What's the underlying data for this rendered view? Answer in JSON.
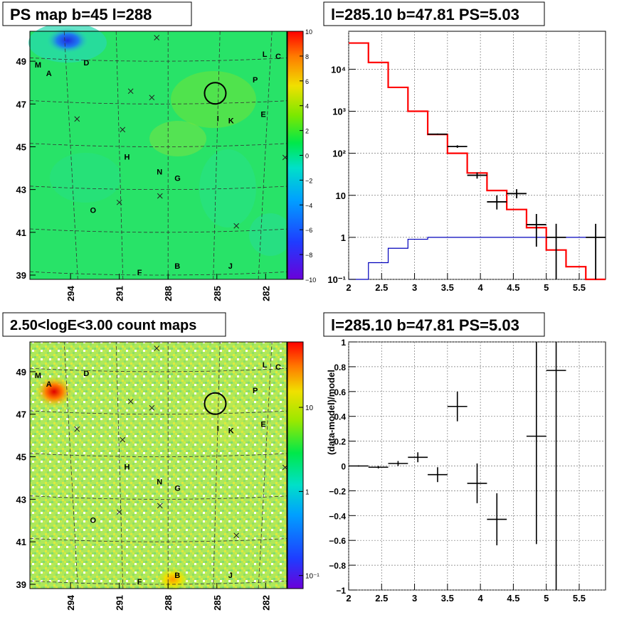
{
  "chart_data": [
    {
      "type": "heatmap",
      "title": "PS map b=45 l=288",
      "x_tick_labels": [
        "294",
        "291",
        "288",
        "285",
        "282"
      ],
      "x_ticks": [
        294,
        291,
        288,
        285,
        282
      ],
      "y_tick_labels": [
        "49",
        "47",
        "45",
        "43",
        "41",
        "39"
      ],
      "y_ticks": [
        49,
        47,
        45,
        43,
        41,
        39
      ],
      "xlim": [
        296.5,
        280.7
      ],
      "ylim": [
        38.8,
        50.4
      ],
      "colorbar": {
        "scale": "linear",
        "tick_labels": [
          "10",
          "8",
          "6",
          "4",
          "2",
          "0",
          "−2",
          "−4",
          "−6",
          "−8",
          "−10"
        ],
        "range": [
          -10,
          10
        ]
      },
      "source_labels": [
        {
          "name": "M",
          "l": 296.2,
          "b": 48.7
        },
        {
          "name": "A",
          "l": 295.5,
          "b": 48.3
        },
        {
          "name": "D",
          "l": 293.2,
          "b": 48.8
        },
        {
          "name": "L",
          "l": 282.2,
          "b": 49.2
        },
        {
          "name": "C",
          "l": 281.4,
          "b": 49.1
        },
        {
          "name": "P",
          "l": 282.8,
          "b": 48.0
        },
        {
          "name": "I",
          "l": 285.0,
          "b": 46.2
        },
        {
          "name": "K",
          "l": 284.3,
          "b": 46.1
        },
        {
          "name": "E",
          "l": 282.3,
          "b": 46.4
        },
        {
          "name": "H",
          "l": 290.7,
          "b": 44.4
        },
        {
          "name": "N",
          "l": 288.7,
          "b": 43.7
        },
        {
          "name": "G",
          "l": 287.6,
          "b": 43.4
        },
        {
          "name": "O",
          "l": 292.8,
          "b": 41.9
        },
        {
          "name": "F",
          "l": 289.9,
          "b": 39.0
        },
        {
          "name": "B",
          "l": 287.6,
          "b": 39.3
        },
        {
          "name": "J",
          "l": 284.3,
          "b": 39.3
        }
      ],
      "cross_markers": [
        {
          "l": 288.7,
          "b": 50.1
        },
        {
          "l": 290.3,
          "b": 47.6
        },
        {
          "l": 289.0,
          "b": 47.3
        },
        {
          "l": 293.6,
          "b": 46.3
        },
        {
          "l": 290.8,
          "b": 45.8
        },
        {
          "l": 280.8,
          "b": 44.5
        },
        {
          "l": 288.5,
          "b": 42.7
        },
        {
          "l": 291.0,
          "b": 42.4
        },
        {
          "l": 283.8,
          "b": 41.3
        }
      ],
      "circle": {
        "l": 285.1,
        "b": 47.5,
        "r": 0.5
      }
    },
    {
      "type": "line",
      "title": "l=285.10 b=47.81 PS=5.03",
      "xlabel": "",
      "ylabel": "",
      "xlim": [
        2.0,
        5.9
      ],
      "ylim": [
        0.1,
        80000
      ],
      "y_scale": "log",
      "x_tick_labels": [
        "2",
        "2.5",
        "3",
        "3.5",
        "4",
        "4.5",
        "5",
        "5.5"
      ],
      "x_ticks": [
        2,
        2.5,
        3,
        3.5,
        4,
        4.5,
        5,
        5.5
      ],
      "y_tick_labels": [
        "10⁴",
        "10³",
        "10²",
        "10",
        "1",
        "10⁻¹"
      ],
      "y_ticks": [
        10000,
        1000,
        100,
        10,
        1,
        0.1
      ],
      "bin_edges": [
        2.0,
        2.3,
        2.6,
        2.9,
        3.2,
        3.5,
        3.8,
        4.1,
        4.4,
        4.7,
        5.0,
        5.3,
        5.6,
        5.9
      ],
      "model_total": [
        42000,
        14500,
        3700,
        1000,
        280,
        100,
        34,
        13,
        4.6,
        1.7,
        0.5,
        0.2,
        0.09
      ],
      "model_background": [
        0.1,
        0.25,
        0.55,
        0.9,
        1.0,
        1.0,
        1.0,
        1.0,
        1.0,
        1.0,
        1.0,
        1.0,
        1.0
      ],
      "data_points": [
        {
          "x": 3.35,
          "xerr": 0.15,
          "y": 285,
          "ylo": 275,
          "yhi": 295
        },
        {
          "x": 3.65,
          "xerr": 0.15,
          "y": 145,
          "ylo": 135,
          "yhi": 155
        },
        {
          "x": 3.95,
          "xerr": 0.15,
          "y": 30,
          "ylo": 25,
          "yhi": 35
        },
        {
          "x": 4.25,
          "xerr": 0.15,
          "y": 7,
          "ylo": 4.6,
          "yhi": 10
        },
        {
          "x": 4.55,
          "xerr": 0.15,
          "y": 11,
          "ylo": 8.5,
          "yhi": 14
        },
        {
          "x": 4.85,
          "xerr": 0.15,
          "y": 2,
          "ylo": 0.6,
          "yhi": 3.6
        },
        {
          "x": 5.15,
          "xerr": 0.15,
          "y": 1,
          "ylo": 0.1,
          "yhi": 2.1
        },
        {
          "x": 5.75,
          "xerr": 0.15,
          "y": 1,
          "ylo": 0.1,
          "yhi": 2.1
        }
      ]
    },
    {
      "type": "heatmap",
      "title": "2.50<logE<3.00 count maps",
      "x_tick_labels": [
        "294",
        "291",
        "288",
        "285",
        "282"
      ],
      "x_ticks": [
        294,
        291,
        288,
        285,
        282
      ],
      "y_tick_labels": [
        "49",
        "47",
        "45",
        "43",
        "41",
        "39"
      ],
      "y_ticks": [
        49,
        47,
        45,
        43,
        41,
        39
      ],
      "xlim": [
        296.5,
        280.7
      ],
      "ylim": [
        38.8,
        50.4
      ],
      "colorbar": {
        "scale": "log",
        "tick_labels": [
          "10",
          "1",
          "10⁻¹"
        ],
        "ticks": [
          10,
          1,
          0.1
        ],
        "range": [
          0.07,
          60
        ]
      }
    },
    {
      "type": "scatter",
      "title": "l=285.10 b=47.81 PS=5.03",
      "xlabel": "",
      "ylabel": "(data-model)/model",
      "xlim": [
        2.0,
        5.9
      ],
      "ylim": [
        -1,
        1
      ],
      "x_tick_labels": [
        "2",
        "2.5",
        "3",
        "3.5",
        "4",
        "4.5",
        "5",
        "5.5"
      ],
      "x_ticks": [
        2,
        2.5,
        3,
        3.5,
        4,
        4.5,
        5,
        5.5
      ],
      "y_tick_labels": [
        "1",
        "0.8",
        "0.6",
        "0.4",
        "0.2",
        "0",
        "−0.2",
        "−0.4",
        "−0.6",
        "−0.8",
        "−1"
      ],
      "y_ticks": [
        1,
        0.8,
        0.6,
        0.4,
        0.2,
        0,
        -0.2,
        -0.4,
        -0.6,
        -0.8,
        -1
      ],
      "points": [
        {
          "x": 2.15,
          "xerr": 0.15,
          "y": 0.0,
          "ylo": -0.005,
          "yhi": 0.005
        },
        {
          "x": 2.45,
          "xerr": 0.15,
          "y": -0.01,
          "ylo": -0.02,
          "yhi": 0.0
        },
        {
          "x": 2.75,
          "xerr": 0.15,
          "y": 0.02,
          "ylo": 0.0,
          "yhi": 0.04
        },
        {
          "x": 3.05,
          "xerr": 0.15,
          "y": 0.07,
          "ylo": 0.03,
          "yhi": 0.11
        },
        {
          "x": 3.35,
          "xerr": 0.15,
          "y": -0.07,
          "ylo": -0.13,
          "yhi": -0.01
        },
        {
          "x": 3.65,
          "xerr": 0.15,
          "y": 0.48,
          "ylo": 0.36,
          "yhi": 0.6
        },
        {
          "x": 3.95,
          "xerr": 0.15,
          "y": -0.14,
          "ylo": -0.3,
          "yhi": 0.02
        },
        {
          "x": 4.25,
          "xerr": 0.15,
          "y": -0.43,
          "ylo": -0.64,
          "yhi": -0.22
        },
        {
          "x": 4.85,
          "xerr": 0.15,
          "y": 0.24,
          "ylo": -0.63,
          "yhi": 1.0
        },
        {
          "x": 5.15,
          "xerr": 0.15,
          "y": 0.77,
          "ylo": -1.0,
          "yhi": 1.0
        }
      ]
    }
  ],
  "colors": {
    "model_total": "#ff0000",
    "model_background": "#0000bb",
    "data": "#000000",
    "grid": "#777777"
  }
}
